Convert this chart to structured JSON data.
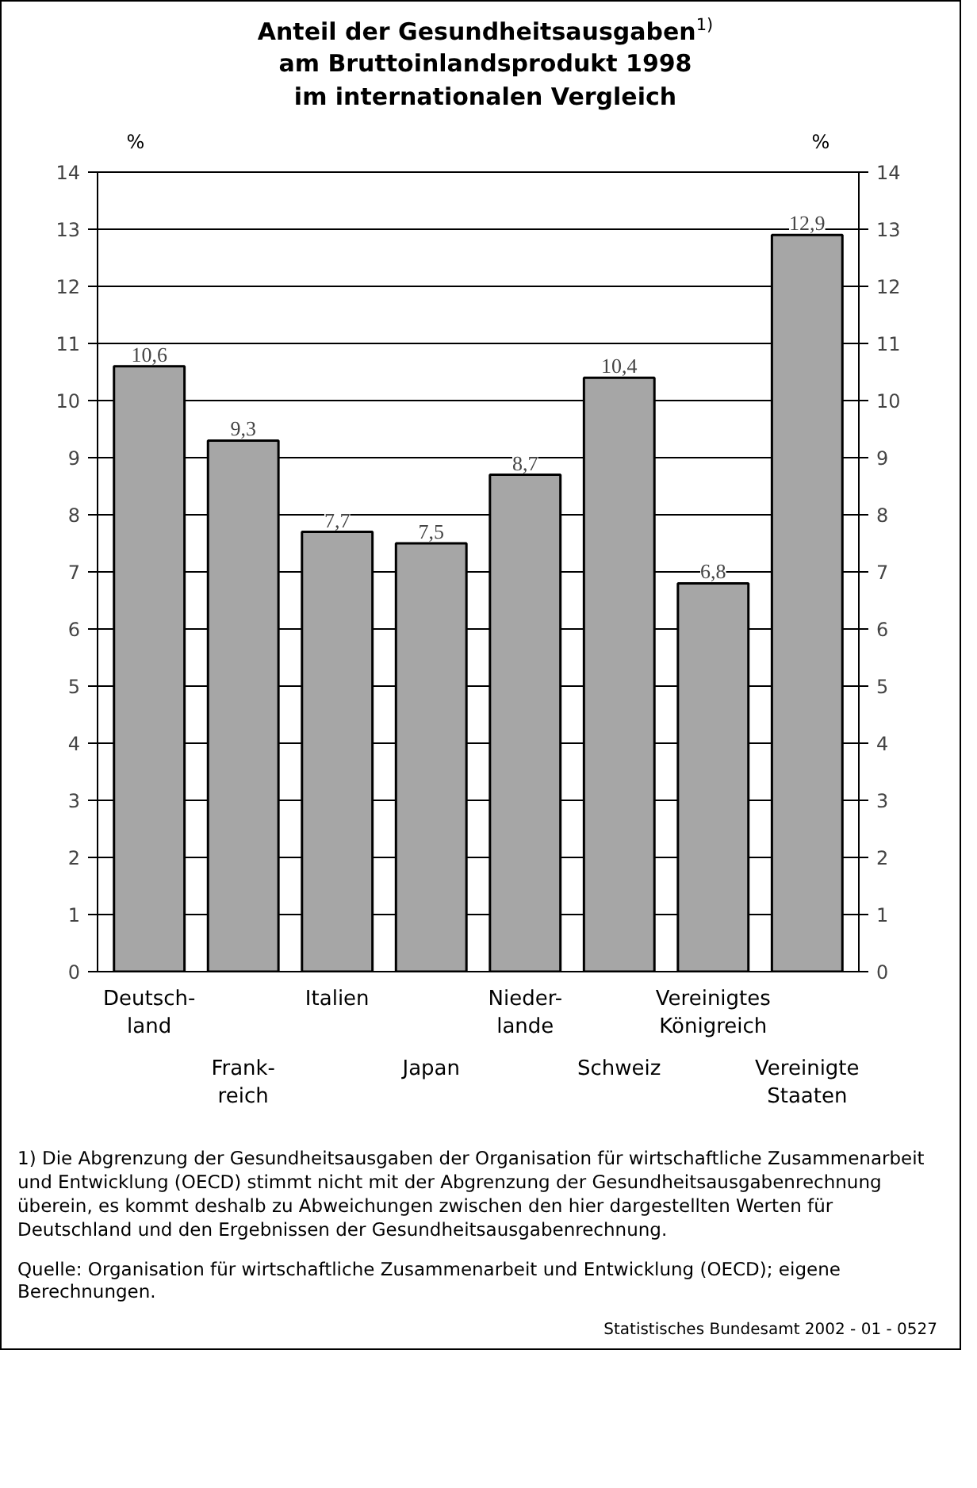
{
  "chart_data": {
    "type": "bar",
    "title": "Anteil der Gesundheitsausgaben$^{1)}$\nam Bruttoinlandsprodukt 1998\nim internationalen Vergleich",
    "categories": [
      "Deutsch-\nland",
      "Frank-\nreich",
      "Italien",
      "Japan",
      "Nieder-\nlande",
      "Schweiz",
      "Vereinigtes\nKönigreich",
      "Vereinigte\nStaaten"
    ],
    "values": [
      10.6,
      9.3,
      7.7,
      7.5,
      8.7,
      10.4,
      6.8,
      12.9
    ],
    "value_labels": [
      "10,6",
      "9,3",
      "7,7",
      "7,5",
      "8,7",
      "10,4",
      "6,8",
      "12,9"
    ],
    "color": "#a6a6a6",
    "ylabel": "%",
    "y2label": "%",
    "ylim": [
      0,
      14
    ],
    "yticks": [
      0,
      1,
      2,
      3,
      4,
      5,
      6,
      7,
      8,
      9,
      10,
      11,
      12,
      13,
      14
    ],
    "y2lim": [
      0,
      14
    ],
    "y2ticks": [
      0,
      1,
      2,
      3,
      4,
      5,
      6,
      7,
      8,
      9,
      10,
      11,
      12,
      13,
      14
    ],
    "grid": "y",
    "annotations": [
      "1) Die Abgrenzung der Gesundheitsausgaben der Organisation für wirtschaftliche Zusammenarbeit und Entwicklung (OECD) stimmt nicht mit der Abgrenzung der Gesundheitsausgabenrechnung überein, es kommt deshalb zu Abweichungen zwischen den hier dargestellten Werten für Deutschland und den Ergebnissen der Gesundheitsausgabenrechnung.",
      "Quelle: Organisation für wirtschaftliche Zusammenarbeit und Entwicklung (OECD); eigene Berechnungen.",
      "Statistisches Bundesamt 2002 - 01 - 0527"
    ]
  }
}
